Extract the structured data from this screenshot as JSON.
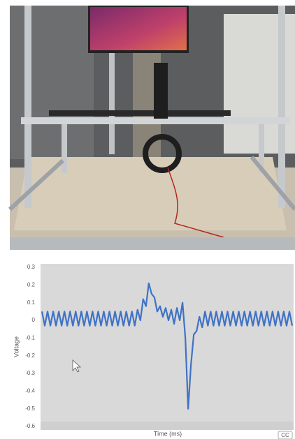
{
  "chart_data": {
    "type": "line",
    "ylabel": "Voltage",
    "xlabel": "Time (ms)",
    "ylim": [
      -0.6,
      0.3
    ],
    "yticks": [
      0.3,
      0.2,
      0.1,
      0,
      -0.1,
      -0.2,
      -0.3,
      -0.4,
      -0.5,
      -0.6
    ],
    "color": "#3f72c6",
    "values": [
      0.05,
      -0.03,
      0.05,
      -0.03,
      0.05,
      -0.03,
      0.05,
      -0.03,
      0.05,
      -0.03,
      0.05,
      -0.03,
      0.05,
      -0.03,
      0.05,
      -0.03,
      0.05,
      -0.03,
      0.05,
      -0.03,
      0.05,
      -0.03,
      0.05,
      -0.03,
      0.05,
      -0.03,
      0.05,
      -0.03,
      0.05,
      -0.03,
      0.05,
      -0.03,
      0.05,
      -0.03,
      0.06,
      0.0,
      0.12,
      0.08,
      0.21,
      0.15,
      0.13,
      0.05,
      0.08,
      0.02,
      0.07,
      0.0,
      0.06,
      -0.02,
      0.07,
      0.0,
      0.1,
      -0.1,
      -0.5,
      -0.25,
      -0.08,
      -0.06,
      0.02,
      -0.04,
      0.05,
      -0.03,
      0.05,
      -0.03,
      0.05,
      -0.03,
      0.05,
      -0.03,
      0.05,
      -0.03,
      0.05,
      -0.03,
      0.05,
      -0.03,
      0.05,
      -0.03,
      0.05,
      -0.03,
      0.05,
      -0.03,
      0.05,
      -0.03,
      0.05,
      -0.03,
      0.05,
      -0.03,
      0.05,
      -0.03,
      0.05,
      -0.03,
      0.05,
      -0.03
    ]
  },
  "cc_button": "CC"
}
